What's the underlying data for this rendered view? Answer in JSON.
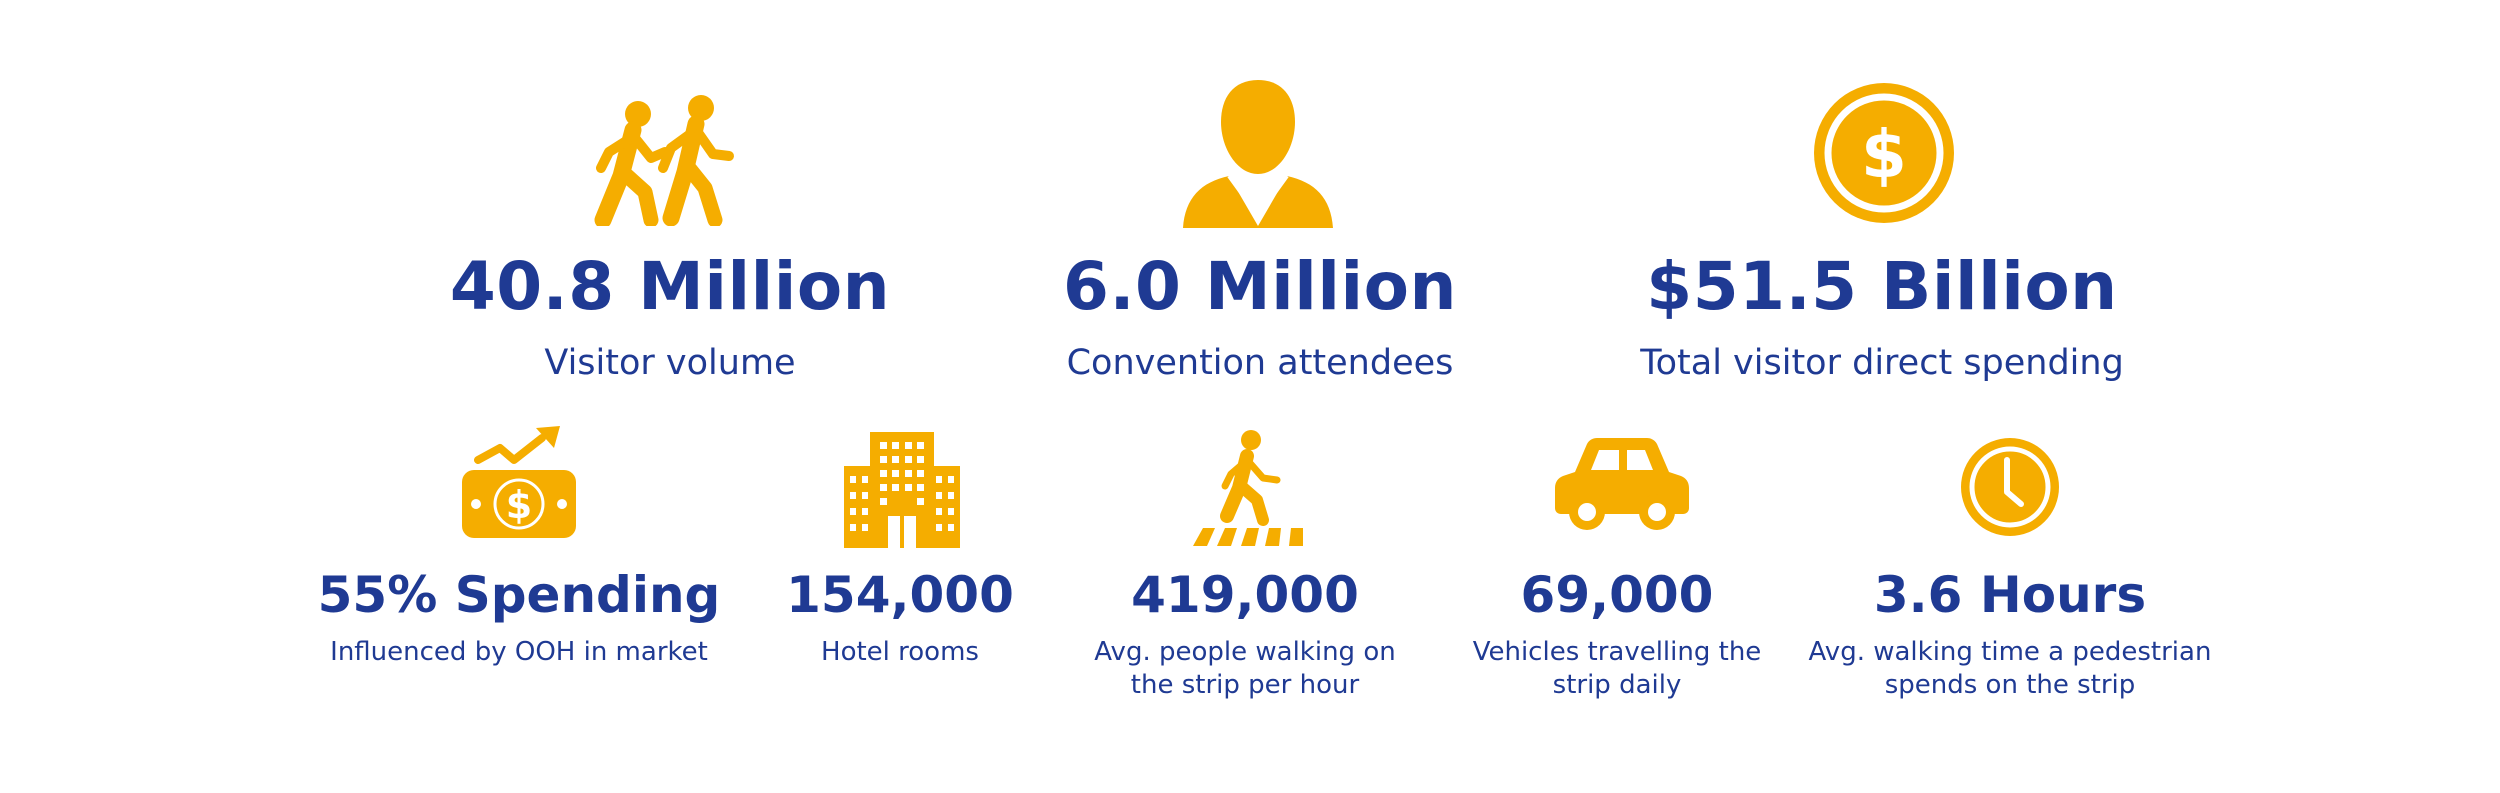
{
  "colors": {
    "icon": "#F5AD00",
    "text": "#1F3A93",
    "background": "#FFFFFF"
  },
  "top_stats": [
    {
      "icon": "walking-people-icon",
      "value": "40.8 Million",
      "label": "Visitor volume"
    },
    {
      "icon": "person-bust-icon",
      "value": "6.0 Million",
      "label": "Convention attendees"
    },
    {
      "icon": "dollar-coin-icon",
      "value": "$51.5 Billion",
      "label": "Total visitor direct spending"
    }
  ],
  "bottom_stats": [
    {
      "icon": "money-trend-icon",
      "value": "55% Spending",
      "label_lines": [
        "Influenced by OOH in market"
      ]
    },
    {
      "icon": "hotel-building-icon",
      "value": "154,000",
      "label_lines": [
        "Hotel rooms"
      ]
    },
    {
      "icon": "pedestrian-crosswalk-icon",
      "value": "419,000",
      "label_lines": [
        "Avg. people walking on",
        "the strip per hour"
      ]
    },
    {
      "icon": "car-icon",
      "value": "69,000",
      "label_lines": [
        "Vehicles travelling the",
        "strip daily"
      ]
    },
    {
      "icon": "clock-icon",
      "value": "3.6 Hours",
      "label_lines": [
        "Avg. walking time a pedestrian",
        "spends on the strip"
      ]
    }
  ]
}
